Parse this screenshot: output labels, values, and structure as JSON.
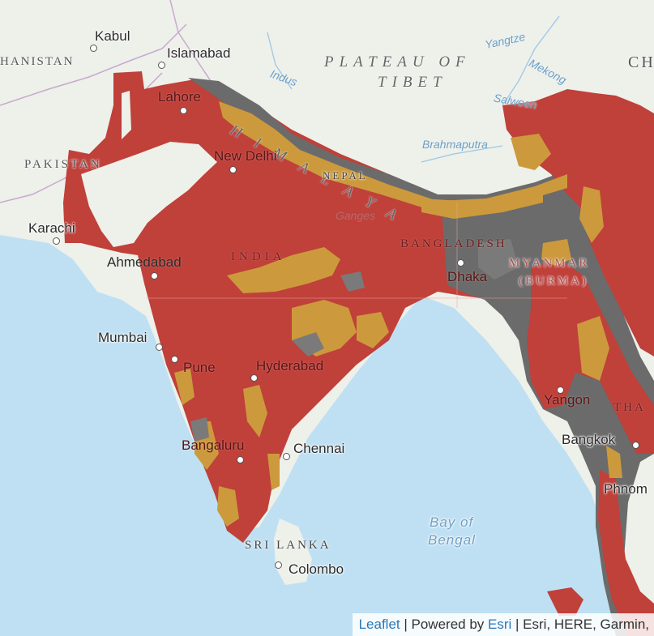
{
  "map": {
    "colors": {
      "sea": "#bfe0f3",
      "land": "#eef0ea",
      "high": "#c0403a",
      "medium": "#cc9a3c",
      "low": "#6b6b6b",
      "border": "#c9a8cf"
    }
  },
  "labels": {
    "kabul": "Kabul",
    "islamabad": "Islamabad",
    "afghanistan": "HANISTAN",
    "plateau": "PLATEAU OF",
    "tibet": "TIBET",
    "china": "CH",
    "yangtze": "Yangtze",
    "indus": "Indus",
    "mekong": "Mekong",
    "salween": "Salween",
    "himalaya": "HIMALAYA",
    "lahore": "Lahore",
    "pakistan": "PAKISTAN",
    "new_delhi": "New Delhi",
    "nepal": "NEPAL",
    "brahmaputra": "Brahmaputra",
    "karachi": "Karachi",
    "ganges": "Ganges",
    "bangladesh": "BANGLADESH",
    "ahmedabad": "Ahmedabad",
    "india": "INDIA",
    "myanmar": "MYANMAR",
    "burma": "(BURMA)",
    "dhaka": "Dhaka",
    "mumbai": "Mumbai",
    "pune": "Pune",
    "hyderabad": "Hyderabad",
    "yangon": "Yangon",
    "thailand": "THA",
    "bangalore": "Bangaluru",
    "chennai": "Chennai",
    "bangkok": "Bangkok",
    "phnom": "Phnom",
    "sri_lanka": "SRI LANKA",
    "colombo": "Colombo",
    "bay_of": "Bay of",
    "bengal": "Bengal"
  },
  "attribution": {
    "leaflet": "Leaflet",
    "sep1": " | Powered by ",
    "esri": "Esri",
    "rest": " | Esri, HERE, Garmin,"
  }
}
